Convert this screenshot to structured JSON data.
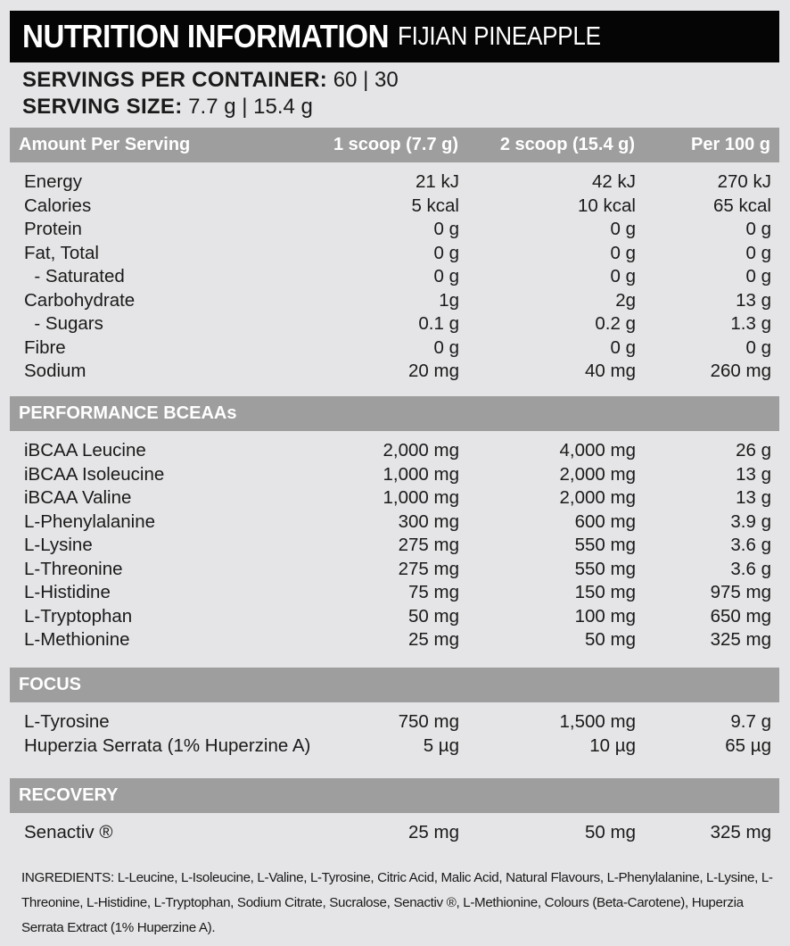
{
  "header": {
    "title": "NUTRITION INFORMATION",
    "flavour": "FIJIAN PINEAPPLE"
  },
  "servings": {
    "per_container_label": "SERVINGS PER CONTAINER:",
    "per_container_value": "60 | 30",
    "size_label": "SERVING SIZE:",
    "size_value": "7.7 g | 15.4 g"
  },
  "columns": [
    "Amount Per Serving",
    "1 scoop (7.7 g)",
    "2 scoop (15.4 g)",
    "Per 100 g"
  ],
  "sections": [
    {
      "title": "",
      "rows": [
        [
          "Energy",
          "21 kJ",
          "42 kJ",
          "270 kJ"
        ],
        [
          "Calories",
          "5 kcal",
          "10 kcal",
          "65 kcal"
        ],
        [
          "Protein",
          "0 g",
          "0 g",
          "0 g"
        ],
        [
          "Fat, Total",
          "0 g",
          "0 g",
          "0 g"
        ],
        [
          " - Saturated",
          "0 g",
          "0 g",
          "0 g"
        ],
        [
          "Carbohydrate",
          "1g",
          "2g",
          "13 g"
        ],
        [
          " - Sugars",
          "0.1 g",
          "0.2 g",
          "1.3 g"
        ],
        [
          "Fibre",
          "0 g",
          "0 g",
          "0 g"
        ],
        [
          "Sodium",
          "20 mg",
          "40 mg",
          "260 mg"
        ]
      ]
    },
    {
      "title": "PERFORMANCE BCEAAs",
      "rows": [
        [
          "iBCAA Leucine",
          "2,000 mg",
          "4,000 mg",
          "26 g"
        ],
        [
          "iBCAA Isoleucine",
          "1,000 mg",
          "2,000 mg",
          "13 g"
        ],
        [
          "iBCAA Valine",
          "1,000 mg",
          "2,000 mg",
          "13 g"
        ],
        [
          "L-Phenylalanine",
          "300 mg",
          "600 mg",
          "3.9 g"
        ],
        [
          "L-Lysine",
          "275 mg",
          "550 mg",
          "3.6 g"
        ],
        [
          "L-Threonine",
          "275 mg",
          "550 mg",
          "3.6 g"
        ],
        [
          "L-Histidine",
          "75 mg",
          "150 mg",
          "975 mg"
        ],
        [
          "L-Tryptophan",
          "50 mg",
          "100 mg",
          "650 mg"
        ],
        [
          "L-Methionine",
          "25 mg",
          "50 mg",
          "325 mg"
        ]
      ]
    },
    {
      "title": "FOCUS",
      "rows": [
        [
          "L-Tyrosine",
          "750 mg",
          "1,500 mg",
          "9.7 g"
        ],
        [
          "Huperzia Serrata (1% Huperzine A)",
          "5 µg",
          "10 µg",
          "65 µg"
        ]
      ]
    },
    {
      "title": "RECOVERY",
      "rows": [
        [
          "Senactiv ®",
          "25 mg",
          "50 mg",
          "325 mg"
        ]
      ]
    }
  ],
  "ingredients": {
    "label": "INGREDIENTS:",
    "text": "L-Leucine, L-Isoleucine, L-Valine, L-Tyrosine, Citric Acid, Malic Acid, Natural Flavours, L-Phenylalanine, L-Lysine, L-Threonine, L-Histidine, L-Tryptophan, Sodium Citrate, Sucralose, Senactiv ®, L-Methionine, Colours (Beta-Carotene), Huperzia Serrata Extract (1% Huperzine A)."
  }
}
